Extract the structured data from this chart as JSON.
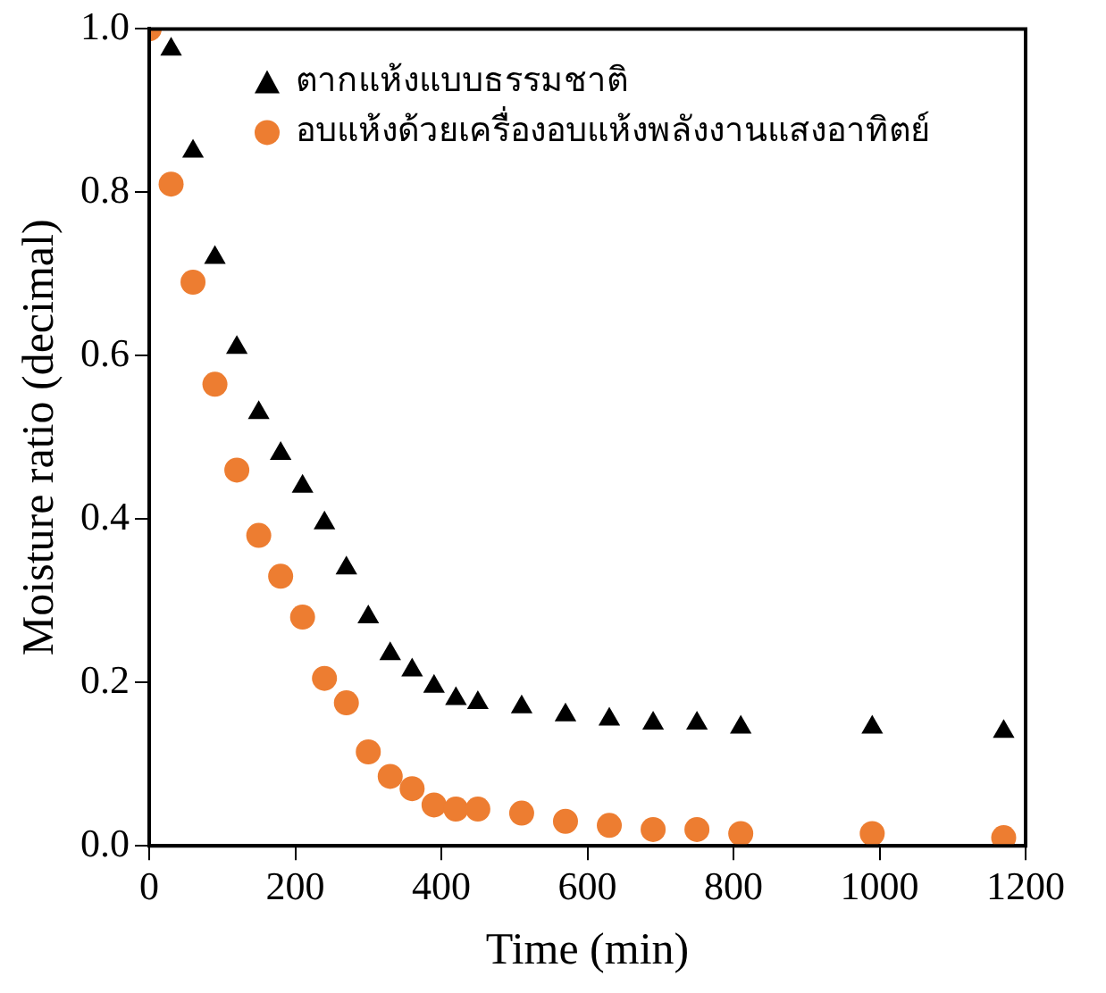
{
  "chart_data": {
    "type": "scatter",
    "xlabel": "Time (min)",
    "ylabel": "Moisture ratio (decimal)",
    "xlim": [
      0,
      1200
    ],
    "xticks": [
      0,
      200,
      400,
      600,
      800,
      1000,
      1200
    ],
    "ylim": [
      0,
      1.0
    ],
    "yticks": [
      {
        "value": 0,
        "label": "0.0"
      },
      {
        "value": 0.2,
        "label": "0.2"
      },
      {
        "value": 0.4,
        "label": "0.4"
      },
      {
        "value": 0.6,
        "label": "0.6"
      },
      {
        "value": 0.8,
        "label": "0.8"
      },
      {
        "value": 1.0,
        "label": "1.0"
      }
    ],
    "grid": false,
    "legend": "top right",
    "series": [
      {
        "name": "ตากแห้งแบบธรรมชาติ",
        "color": "#000000",
        "marker": "triangle",
        "x": [
          30,
          60,
          90,
          120,
          150,
          180,
          210,
          240,
          270,
          300,
          330,
          360,
          390,
          420,
          450,
          510,
          570,
          630,
          690,
          750,
          810,
          990,
          1170
        ],
        "values": [
          0.975,
          0.85,
          0.72,
          0.61,
          0.53,
          0.48,
          0.44,
          0.395,
          0.34,
          0.28,
          0.235,
          0.215,
          0.195,
          0.18,
          0.175,
          0.17,
          0.16,
          0.155,
          0.15,
          0.15,
          0.145,
          0.145,
          0.14
        ]
      },
      {
        "name": "อบแห้งด้วยเครื่องอบแห้งพลังงานแสงอาทิตย์",
        "color": "#ed7d31",
        "marker": "circle",
        "x": [
          0,
          30,
          60,
          90,
          120,
          150,
          180,
          210,
          240,
          270,
          300,
          330,
          360,
          390,
          420,
          450,
          510,
          570,
          630,
          690,
          750,
          810,
          990,
          1170
        ],
        "values": [
          1.0,
          0.81,
          0.69,
          0.565,
          0.46,
          0.38,
          0.33,
          0.28,
          0.205,
          0.175,
          0.115,
          0.085,
          0.07,
          0.05,
          0.045,
          0.045,
          0.04,
          0.03,
          0.025,
          0.02,
          0.02,
          0.015,
          0.015,
          0.01
        ]
      }
    ]
  }
}
